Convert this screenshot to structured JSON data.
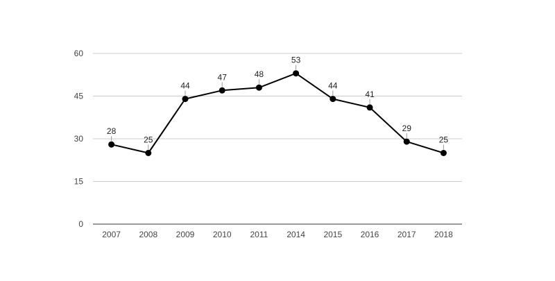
{
  "chart_data": {
    "type": "line",
    "title": "",
    "xlabel": "",
    "ylabel": "",
    "categories": [
      "2007",
      "2008",
      "2009",
      "2010",
      "2011",
      "2014",
      "2015",
      "2016",
      "2017",
      "2018"
    ],
    "series": [
      {
        "values": [
          28,
          25,
          44,
          47,
          48,
          53,
          44,
          41,
          29,
          25
        ],
        "color": "#000000"
      }
    ],
    "ylim": [
      0,
      60
    ],
    "yticks": [
      0,
      15,
      30,
      45,
      60
    ],
    "grid": true,
    "legend": "none",
    "data_labels": true
  }
}
